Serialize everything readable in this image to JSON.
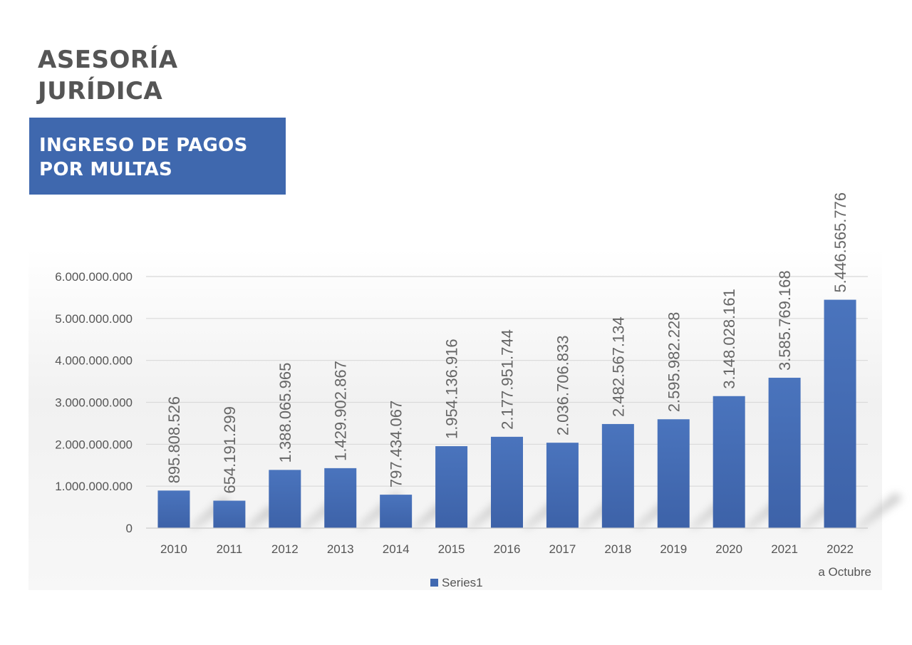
{
  "heading": {
    "line1": "ASESORÍA",
    "line2": "JURÍDICA"
  },
  "banner": {
    "line1": "INGRESO DE PAGOS",
    "line2": "POR MULTAS",
    "color": "#3f68ae"
  },
  "chart_data": {
    "type": "bar",
    "title": "",
    "xlabel": "",
    "ylabel": "",
    "categories": [
      "2010",
      "2011",
      "2012",
      "2013",
      "2014",
      "2015",
      "2016",
      "2017",
      "2018",
      "2019",
      "2020",
      "2021",
      "2022"
    ],
    "category_note": "a Octubre",
    "series": [
      {
        "name": "Series1",
        "color": "#4169b1",
        "values": [
          895808526,
          654191299,
          1388065965,
          1429902867,
          797434067,
          1954136916,
          2177951744,
          2036706833,
          2482567134,
          2595982228,
          3148028161,
          3585769168,
          5446565776
        ],
        "labels": [
          "895.808.526",
          "654.191.299",
          "1.388.065.965",
          "1.429.902.867",
          "797.434.067",
          "1.954.136.916",
          "2.177.951.744",
          "2.036.706.833",
          "2.482.567.134",
          "2.595.982.228",
          "3.148.028.161",
          "3.585.769.168",
          "5.446.565.776"
        ]
      }
    ],
    "ylim": [
      0,
      6000000000
    ],
    "yticks": [
      0,
      1000000000,
      2000000000,
      3000000000,
      4000000000,
      5000000000,
      6000000000
    ],
    "ytick_labels": [
      "0",
      "1.000.000.000",
      "2.000.000.000",
      "3.000.000.000",
      "4.000.000.000",
      "5.000.000.000",
      "6.000.000.000"
    ],
    "grid": true,
    "legend": "bottom"
  }
}
